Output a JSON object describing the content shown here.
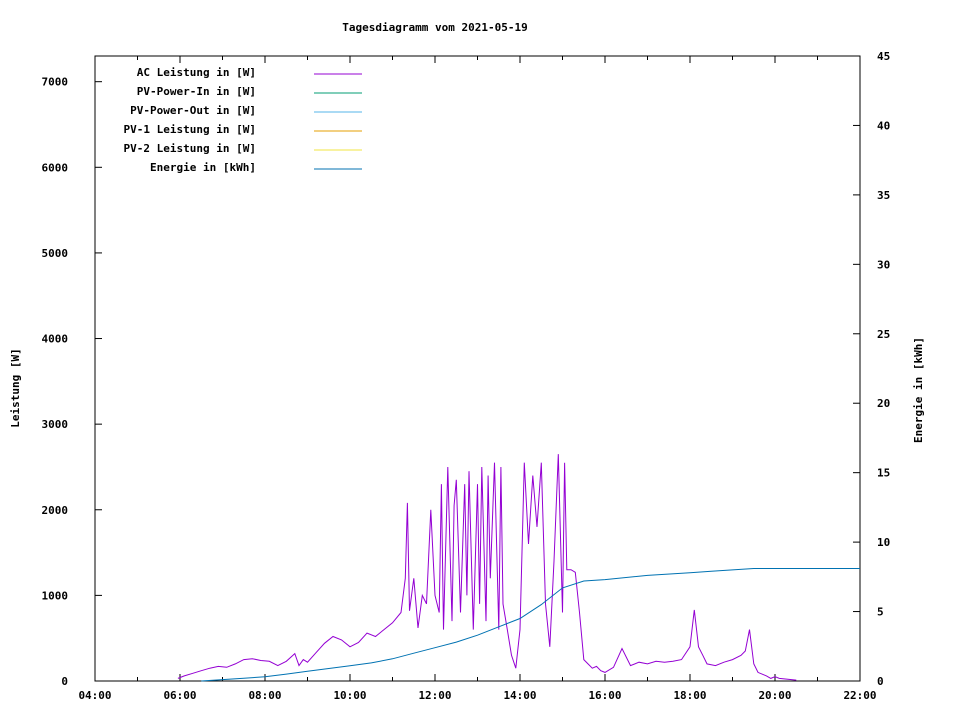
{
  "chart_data": {
    "type": "line",
    "title": "Tagesdiagramm vom 2021-05-19",
    "xlabel": "",
    "ylabel": "Leistung [W]",
    "y2label": "Energie in [kWh]",
    "x_ticks": [
      "04:00",
      "06:00",
      "08:00",
      "10:00",
      "12:00",
      "14:00",
      "16:00",
      "18:00",
      "20:00",
      "22:00"
    ],
    "xlim_hours": [
      4,
      22
    ],
    "ylim": [
      0,
      7300
    ],
    "y2lim": [
      0,
      45
    ],
    "y_ticks": [
      0,
      1000,
      2000,
      3000,
      4000,
      5000,
      6000,
      7000
    ],
    "y2_ticks": [
      0,
      5,
      10,
      15,
      20,
      25,
      30,
      35,
      40,
      45
    ],
    "grid": false,
    "legend_position": "top-left",
    "series": [
      {
        "name": "AC Leistung in [W]",
        "color": "#9400d3",
        "axis": "left",
        "x_hours": [
          5.95,
          6.1,
          6.3,
          6.5,
          6.7,
          6.9,
          7.1,
          7.3,
          7.5,
          7.7,
          7.9,
          8.1,
          8.3,
          8.5,
          8.7,
          8.8,
          8.9,
          9.0,
          9.2,
          9.4,
          9.6,
          9.8,
          10.0,
          10.2,
          10.4,
          10.6,
          10.7,
          10.8,
          11.0,
          11.2,
          11.3,
          11.35,
          11.4,
          11.5,
          11.6,
          11.7,
          11.8,
          11.9,
          12.0,
          12.1,
          12.15,
          12.2,
          12.3,
          12.4,
          12.45,
          12.5,
          12.6,
          12.7,
          12.75,
          12.8,
          12.9,
          13.0,
          13.05,
          13.1,
          13.2,
          13.25,
          13.3,
          13.4,
          13.5,
          13.55,
          13.6,
          13.7,
          13.8,
          13.9,
          14.0,
          14.1,
          14.2,
          14.3,
          14.4,
          14.5,
          14.6,
          14.7,
          14.8,
          14.9,
          15.0,
          15.05,
          15.1,
          15.2,
          15.3,
          15.4,
          15.5,
          15.6,
          15.7,
          15.8,
          15.9,
          16.0,
          16.2,
          16.4,
          16.6,
          16.8,
          17.0,
          17.2,
          17.4,
          17.6,
          17.8,
          18.0,
          18.1,
          18.2,
          18.3,
          18.4,
          18.6,
          18.8,
          19.0,
          19.2,
          19.3,
          19.4,
          19.5,
          19.6,
          19.7,
          19.8,
          19.9,
          20.0,
          20.1,
          20.3,
          20.5
        ],
        "values": [
          30,
          60,
          90,
          120,
          150,
          170,
          160,
          200,
          250,
          260,
          240,
          230,
          180,
          230,
          320,
          180,
          250,
          220,
          330,
          440,
          520,
          480,
          400,
          450,
          560,
          520,
          560,
          600,
          680,
          800,
          1200,
          2080,
          820,
          1200,
          620,
          1000,
          900,
          2000,
          1000,
          800,
          2300,
          600,
          2500,
          700,
          2050,
          2350,
          800,
          2300,
          1000,
          2450,
          600,
          2300,
          900,
          2500,
          700,
          2400,
          1200,
          2550,
          600,
          2500,
          900,
          600,
          300,
          150,
          600,
          2550,
          1600,
          2400,
          1800,
          2550,
          900,
          400,
          1400,
          2650,
          800,
          2550,
          1300,
          1300,
          1270,
          800,
          250,
          200,
          150,
          170,
          120,
          100,
          160,
          380,
          180,
          220,
          200,
          230,
          220,
          230,
          250,
          400,
          830,
          400,
          300,
          200,
          180,
          220,
          250,
          300,
          350,
          600,
          200,
          100,
          80,
          60,
          30,
          50,
          30,
          20,
          10
        ]
      },
      {
        "name": "PV-Power-In in [W]",
        "color": "#009e73",
        "axis": "left",
        "x_hours": [],
        "values": []
      },
      {
        "name": "PV-Power-Out in [W]",
        "color": "#56b4e9",
        "axis": "left",
        "x_hours": [],
        "values": []
      },
      {
        "name": "PV-1 Leistung in [W]",
        "color": "#e69f00",
        "axis": "left",
        "x_hours": [],
        "values": []
      },
      {
        "name": "PV-2 Leistung in [W]",
        "color": "#f0e442",
        "axis": "left",
        "x_hours": [],
        "values": []
      },
      {
        "name": "Energie in [kWh]",
        "color": "#0072b2",
        "axis": "right",
        "x_hours": [
          6.5,
          7.0,
          7.5,
          8.0,
          8.5,
          9.0,
          9.5,
          10.0,
          10.5,
          11.0,
          11.5,
          12.0,
          12.5,
          13.0,
          13.5,
          14.0,
          14.5,
          15.0,
          15.5,
          16.0,
          17.0,
          18.0,
          18.5,
          19.0,
          19.5,
          20.0,
          21.0,
          22.0
        ],
        "values": [
          0.0,
          0.1,
          0.2,
          0.3,
          0.5,
          0.7,
          0.9,
          1.1,
          1.3,
          1.6,
          2.0,
          2.4,
          2.8,
          3.3,
          3.9,
          4.5,
          5.5,
          6.7,
          7.2,
          7.3,
          7.6,
          7.8,
          7.9,
          8.0,
          8.1,
          8.1,
          8.1,
          8.1
        ]
      }
    ]
  }
}
